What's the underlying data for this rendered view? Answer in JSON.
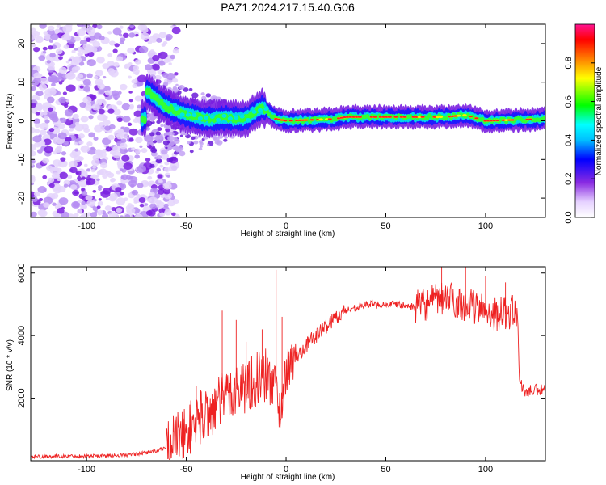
{
  "title": "PAZ1.2024.217.15.40.G06",
  "chart_data": [
    {
      "type": "heatmap",
      "title": "PAZ1.2024.217.15.40.G06",
      "xlabel": "Height of straight line (km)",
      "ylabel": "Frequency (Hz)",
      "xlim": [
        -128,
        130
      ],
      "ylim": [
        -25,
        25
      ],
      "xticks": [
        -100,
        -50,
        0,
        50,
        100
      ],
      "yticks": [
        -20,
        -10,
        0,
        10,
        20
      ],
      "colorbar": {
        "label": "Normalized spectral amplitude",
        "range": [
          0,
          1
        ],
        "ticks": [
          0.0,
          0.2,
          0.4,
          0.6,
          0.8
        ],
        "colors": [
          "#ffffff",
          "#e0c8ff",
          "#8a2be2",
          "#0000ff",
          "#00ffff",
          "#00ff00",
          "#ffff00",
          "#ff8000",
          "#ff0000",
          "#ff1493"
        ]
      },
      "ridge": [
        {
          "x": -70,
          "freq": 8.0
        },
        {
          "x": -60,
          "freq": 3.5
        },
        {
          "x": -50,
          "freq": 1.5
        },
        {
          "x": -40,
          "freq": 0.5
        },
        {
          "x": -30,
          "freq": 0.8
        },
        {
          "x": -20,
          "freq": 0.5
        },
        {
          "x": -12,
          "freq": 3.5
        },
        {
          "x": -5,
          "freq": 0.5
        },
        {
          "x": 0,
          "freq": 0.0
        },
        {
          "x": 25,
          "freq": 0.5
        },
        {
          "x": 30,
          "freq": 1.0
        },
        {
          "x": 50,
          "freq": 1.0
        },
        {
          "x": 80,
          "freq": 1.0
        },
        {
          "x": 90,
          "freq": 1.5
        },
        {
          "x": 100,
          "freq": 0.0
        },
        {
          "x": 130,
          "freq": 0.5
        }
      ]
    },
    {
      "type": "line",
      "xlabel": "Height of straight line (km)",
      "ylabel": "SNR (10 * v/v)",
      "xlim": [
        -128,
        130
      ],
      "ylim": [
        0,
        6200
      ],
      "xticks": [
        -100,
        -50,
        0,
        50,
        100
      ],
      "yticks": [
        2000,
        4000,
        6000
      ],
      "color": "#ee2222",
      "x": [
        -128,
        -100,
        -80,
        -70,
        -60,
        -55,
        -50,
        -45,
        -40,
        -35,
        -30,
        -25,
        -20,
        -15,
        -10,
        -5,
        -3,
        0,
        5,
        10,
        15,
        20,
        25,
        30,
        35,
        40,
        45,
        50,
        55,
        60,
        65,
        70,
        75,
        80,
        85,
        90,
        95,
        100,
        105,
        110,
        116,
        117,
        120,
        125,
        130
      ],
      "y": [
        130,
        150,
        180,
        250,
        400,
        700,
        900,
        1300,
        1500,
        1700,
        2100,
        2300,
        2400,
        2600,
        2700,
        2400,
        1500,
        2900,
        3300,
        3700,
        4000,
        4300,
        4600,
        4800,
        4900,
        5000,
        5000,
        5000,
        5000,
        4950,
        4900,
        5000,
        5100,
        5200,
        5100,
        5000,
        4900,
        4800,
        4700,
        4700,
        4800,
        2500,
        2200,
        2250,
        2250
      ],
      "spikes": [
        {
          "x": -45,
          "y": 2400
        },
        {
          "x": -32,
          "y": 4800
        },
        {
          "x": -25,
          "y": 4500
        },
        {
          "x": -20,
          "y": 3800
        },
        {
          "x": -12,
          "y": 4200
        },
        {
          "x": -5,
          "y": 6100
        },
        {
          "x": -2,
          "y": 4600
        },
        {
          "x": 78,
          "y": 6300
        },
        {
          "x": 90,
          "y": 6300
        },
        {
          "x": 100,
          "y": 5900
        },
        {
          "x": 110,
          "y": 5700
        }
      ]
    }
  ]
}
